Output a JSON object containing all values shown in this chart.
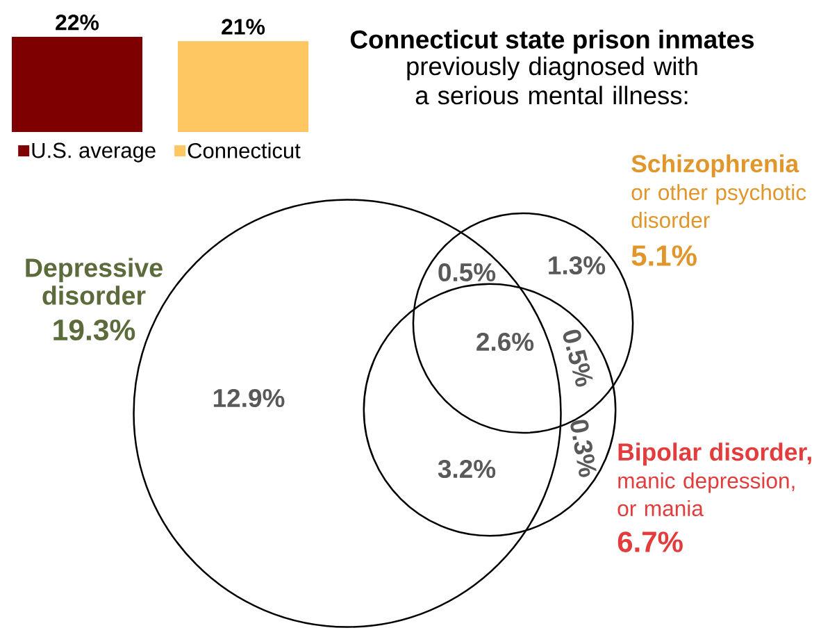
{
  "chart_data": [
    {
      "type": "bar",
      "categories": [
        null
      ],
      "series": [
        {
          "name": "U.S. average",
          "color": "#7f0000",
          "values": [
            22
          ],
          "value_labels": [
            "22%"
          ]
        },
        {
          "name": "Connecticut",
          "color": "#fec761",
          "values": [
            21
          ],
          "value_labels": [
            "21%"
          ]
        }
      ],
      "legend": "bottom"
    },
    {
      "type": "other",
      "title": "Connecticut state prison inmates",
      "subtitle": "previously diagnosed with a serious mental illness:",
      "categories": [
        "Depressive disorder",
        "**Schizophrenia** or other psychotic disorder",
        "**Bipolar disorder,** manic depression, or mania"
      ],
      "values": [
        19.3,
        5.1,
        6.7
      ],
      "value_labels": [
        "19.3%",
        "5.1%",
        "6.7%"
      ],
      "colors": [
        "#5b6b3b",
        "#e0962a",
        "#e23c3c"
      ],
      "annotations": [
        "0.5%",
        "1.3%",
        "2.6%",
        "0.5%",
        "0.3%",
        "12.9%",
        "3.2%"
      ]
    }
  ]
}
